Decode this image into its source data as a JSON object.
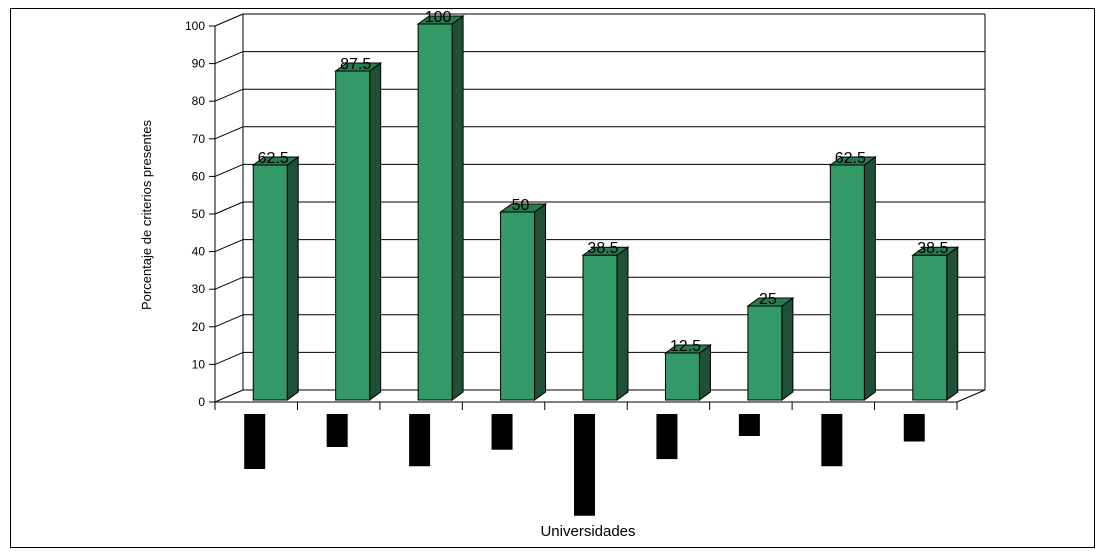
{
  "chart_data": {
    "type": "bar",
    "title": "",
    "xlabel": "Universidades",
    "ylabel": "Porcentaje de criterios presentes",
    "ylim": [
      0,
      100
    ],
    "yticks": [
      0,
      10,
      20,
      30,
      40,
      50,
      60,
      70,
      80,
      90,
      100
    ],
    "grid": true,
    "style": "3d-column",
    "colors": {
      "bar_front": "#339966",
      "bar_side": "#1f4f34",
      "bar_top": "#2a7a50",
      "category_label_block": "#000000"
    },
    "values": [
      62.5,
      87.5,
      100,
      50,
      38.5,
      12.5,
      25,
      62.5,
      38.5
    ],
    "data_labels": [
      "62.5",
      "87.5",
      "100",
      "50",
      "38.5",
      "12.5",
      "25",
      "62.5",
      "38.5"
    ],
    "category_label_blocks_relative_length": [
      1.0,
      0.6,
      0.95,
      0.65,
      1.85,
      0.82,
      0.4,
      0.95,
      0.5
    ]
  }
}
